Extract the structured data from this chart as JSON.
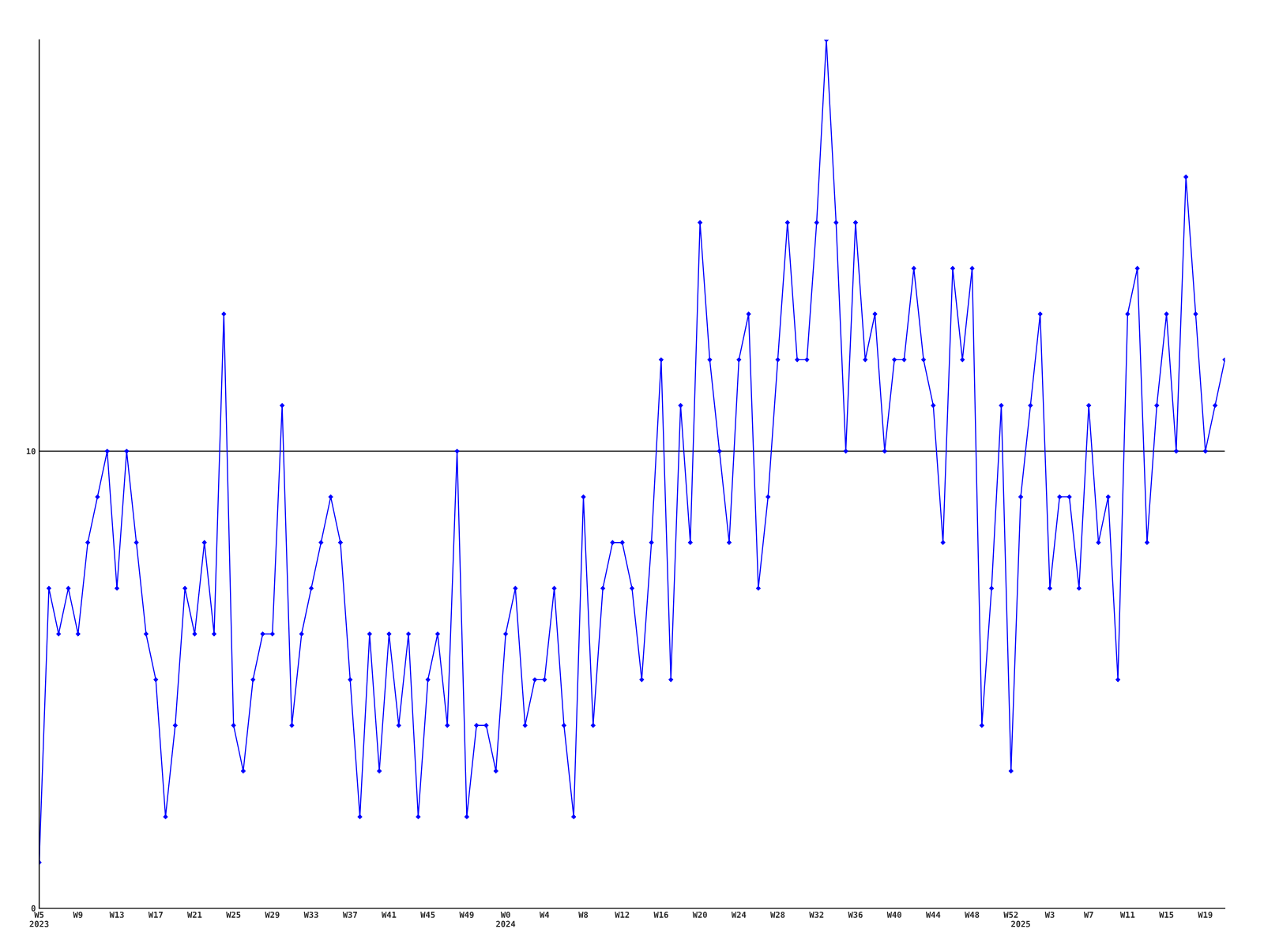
{
  "chart_data": {
    "type": "line",
    "color": "#0000ff",
    "marker": "diamond",
    "grid": "y",
    "ylim": [
      0,
      19
    ],
    "yticks": [
      0,
      10
    ],
    "categories": [
      "W5\n2023",
      null,
      null,
      null,
      "W9",
      null,
      null,
      null,
      "W13",
      null,
      null,
      null,
      "W17",
      null,
      null,
      null,
      "W21",
      null,
      null,
      null,
      "W25",
      null,
      null,
      null,
      "W29",
      null,
      null,
      null,
      "W33",
      null,
      null,
      null,
      "W37",
      null,
      null,
      null,
      "W41",
      null,
      null,
      null,
      "W45",
      null,
      null,
      null,
      "W49",
      null,
      null,
      null,
      "W0\n2024",
      null,
      null,
      null,
      "W4",
      null,
      null,
      null,
      "W8",
      null,
      null,
      null,
      "W12",
      null,
      null,
      null,
      "W16",
      null,
      null,
      null,
      "W20",
      null,
      null,
      null,
      "W24",
      null,
      null,
      null,
      "W28",
      null,
      null,
      null,
      "W32",
      null,
      null,
      null,
      "W36",
      null,
      null,
      null,
      "W40",
      null,
      null,
      null,
      "W44",
      null,
      null,
      null,
      "W48",
      null,
      null,
      null,
      "W52",
      "\n2025",
      null,
      null,
      "W3",
      null,
      null,
      null,
      "W7",
      null,
      null,
      null,
      "W11",
      null,
      null,
      null,
      "W15",
      null,
      null,
      null,
      "W19",
      null,
      null
    ],
    "values": [
      1,
      7,
      6,
      7,
      6,
      8,
      9,
      10,
      7,
      10,
      8,
      6,
      5,
      2,
      4,
      7,
      6,
      8,
      6,
      13,
      4,
      3,
      5,
      6,
      6,
      11,
      4,
      6,
      7,
      8,
      9,
      8,
      5,
      2,
      6,
      3,
      6,
      4,
      6,
      2,
      5,
      6,
      4,
      10,
      2,
      4,
      4,
      3,
      6,
      7,
      4,
      5,
      5,
      7,
      4,
      2,
      9,
      4,
      7,
      8,
      8,
      7,
      5,
      8,
      12,
      5,
      11,
      8,
      15,
      12,
      10,
      8,
      12,
      13,
      7,
      9,
      12,
      15,
      12,
      12,
      15,
      19,
      15,
      10,
      15,
      12,
      13,
      10,
      12,
      12,
      14,
      12,
      11,
      8,
      14,
      12,
      14,
      4,
      7,
      11,
      3,
      9,
      11,
      13,
      7,
      9,
      9,
      7,
      11,
      8,
      9,
      5,
      13,
      14,
      8,
      11,
      13,
      10,
      16,
      13,
      10,
      11,
      12
    ]
  }
}
